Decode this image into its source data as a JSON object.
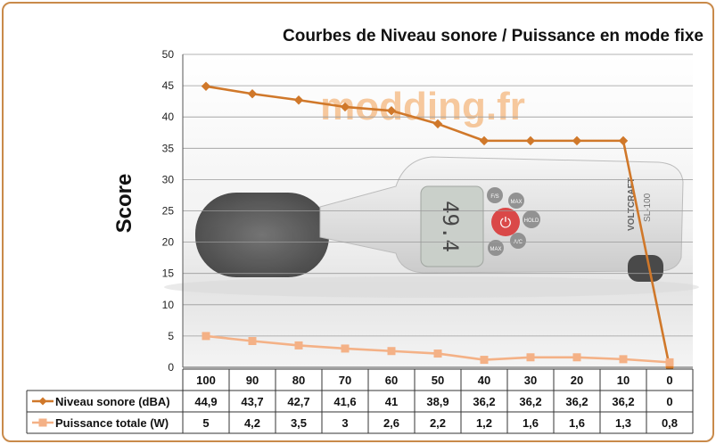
{
  "chart_data": {
    "type": "line",
    "title": "Courbes de Niveau sonore / Puissance en mode fixe",
    "ylabel": "Score",
    "xlabel": "",
    "ylim": [
      0,
      50
    ],
    "yticks": [
      "0",
      "5",
      "10",
      "15",
      "20",
      "25",
      "30",
      "35",
      "40",
      "45",
      "50"
    ],
    "categories": [
      "100",
      "90",
      "80",
      "70",
      "60",
      "50",
      "40",
      "30",
      "20",
      "10",
      "0"
    ],
    "series": [
      {
        "name": "Niveau sonore (dBA)",
        "color": "#d0782a",
        "marker": "diamond",
        "values": [
          44.9,
          43.7,
          42.7,
          41.6,
          41,
          38.9,
          36.2,
          36.2,
          36.2,
          36.2,
          0
        ],
        "labels": [
          "44,9",
          "43,7",
          "42,7",
          "41,6",
          "41",
          "38,9",
          "36,2",
          "36,2",
          "36,2",
          "36,2",
          "0"
        ]
      },
      {
        "name": "Puissance totale (W)",
        "color": "#f4b186",
        "marker": "square",
        "values": [
          5,
          4.2,
          3.5,
          3,
          2.6,
          2.2,
          1.2,
          1.6,
          1.6,
          1.3,
          0.8
        ],
        "labels": [
          "5",
          "4,2",
          "3,5",
          "3",
          "2,6",
          "2,2",
          "1,2",
          "1,6",
          "1,6",
          "1,3",
          "0,8"
        ]
      }
    ],
    "grid": true,
    "legend": "data-table"
  },
  "watermark": "modding.fr",
  "device_text": {
    "brand": "VOLTCRAFT",
    "model": "SL-100",
    "display": "49.4",
    "btn_power": "⏻",
    "btn_fs": "F/S",
    "btn_max": "MAX",
    "btn_hold": "HOLD",
    "btn_ac": "A/C",
    "btn_ml": "MAX"
  }
}
